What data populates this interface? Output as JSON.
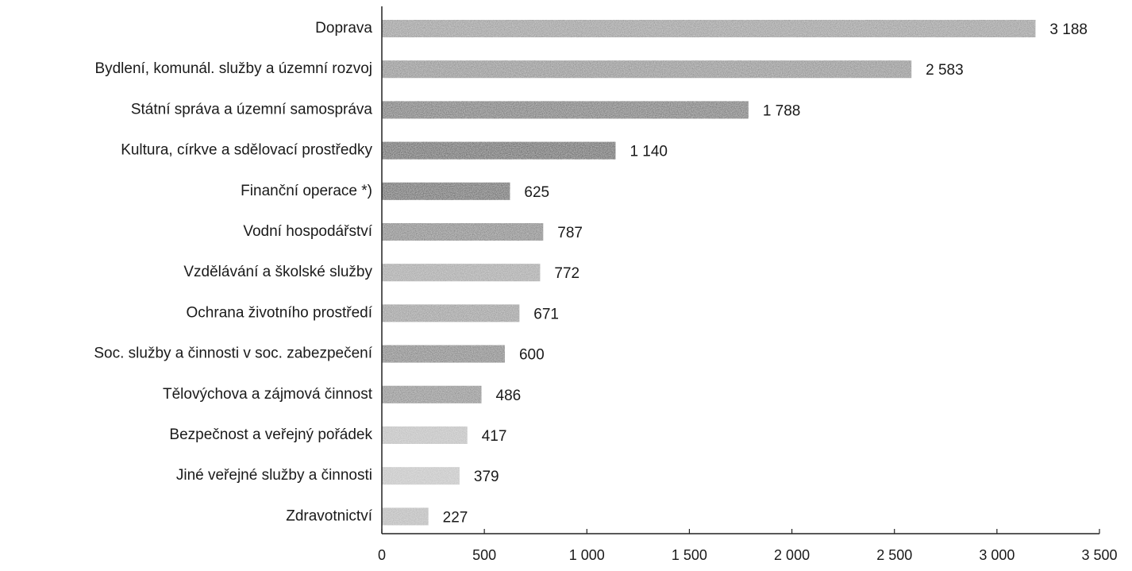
{
  "chart_data": {
    "type": "bar",
    "orientation": "horizontal",
    "categories": [
      "Doprava",
      "Bydlení, komunál. služby a územní rozvoj",
      "Státní správa a územní samospráva",
      "Kultura, církve a sdělovací prostředky",
      "Finanční operace *)",
      "Vodní hospodářství",
      "Vzdělávání a školské služby",
      "Ochrana životního prostředí",
      "Soc. služby a činnosti v soc. zabezpečení",
      "Tělovýchova a zájmová činnost",
      "Bezpečnost a veřejný pořádek",
      "Jiné veřejné služby a činnosti",
      "Zdravotnictví"
    ],
    "values": [
      3188,
      2583,
      1788,
      1140,
      625,
      787,
      772,
      671,
      600,
      486,
      417,
      379,
      227
    ],
    "value_labels": [
      "3 188",
      "2 583",
      "1 788",
      "1 140",
      "625",
      "787",
      "772",
      "671",
      "600",
      "486",
      "417",
      "379",
      "227"
    ],
    "bar_colors": [
      "#8a8a8a",
      "#7d7d7d",
      "#555555",
      "#333333",
      "#3a3a3a",
      "#6e6e6e",
      "#9a9a9a",
      "#8c8c8c",
      "#6a6a6a",
      "#7a7a7a",
      "#b8b8b8",
      "#bdbdbd",
      "#b0b0b0"
    ],
    "xlim": [
      0,
      3500
    ],
    "xticks": [
      0,
      500,
      1000,
      1500,
      2000,
      2500,
      3000,
      3500
    ],
    "xtick_labels": [
      "0",
      "500",
      "1 000",
      "1 500",
      "2 000",
      "2 500",
      "3 000",
      "3 500"
    ],
    "grid": false,
    "legend": "none"
  }
}
